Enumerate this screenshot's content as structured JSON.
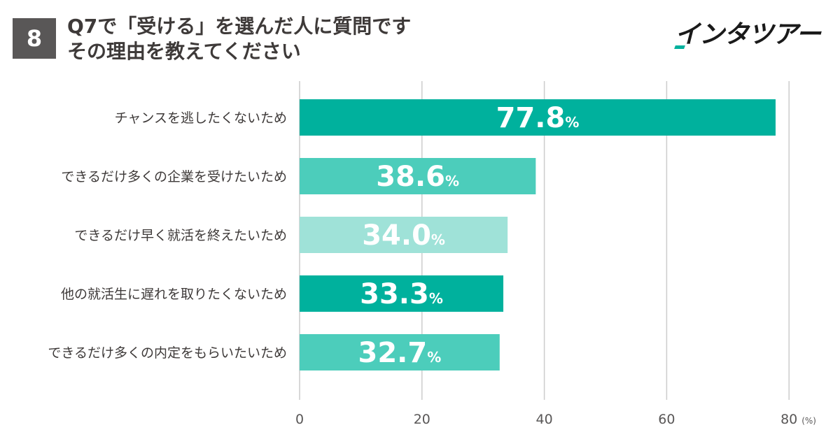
{
  "header": {
    "badge_number": "8",
    "title_line1": "Q7で「受ける」を選んだ人に質問です",
    "title_line2": "その理由を教えてください",
    "logo_text": "インタツアー"
  },
  "colors": {
    "badge_bg": "#595757",
    "bar_dark": "#00b19d",
    "bar_medium": "#4ccdbb",
    "bar_light": "#9fe2d8",
    "grid": "#cccccc",
    "logo_accent": "#00b19d"
  },
  "chart_data": {
    "type": "bar",
    "orientation": "horizontal",
    "categories": [
      "チャンスを逃したくないため",
      "できるだけ多くの企業を受けたいため",
      "できるだけ早く就活を終えたいため",
      "他の就活生に遅れを取りたくないため",
      "できるだけ多くの内定をもらいたいため"
    ],
    "values": [
      77.8,
      38.6,
      34.0,
      33.3,
      32.7
    ],
    "value_labels": [
      "77.8",
      "38.6",
      "34.0",
      "33.3",
      "32.7"
    ],
    "value_suffix": "%",
    "bar_colors": [
      "#00b19d",
      "#4ccdbb",
      "#9fe2d8",
      "#00b19d",
      "#4ccdbb"
    ],
    "xlim": [
      0,
      80
    ],
    "xticks": [
      0,
      20,
      40,
      60,
      80
    ],
    "xtick_labels": [
      "0",
      "20",
      "40",
      "60",
      "80"
    ],
    "unit": "(%)",
    "grid": true
  }
}
